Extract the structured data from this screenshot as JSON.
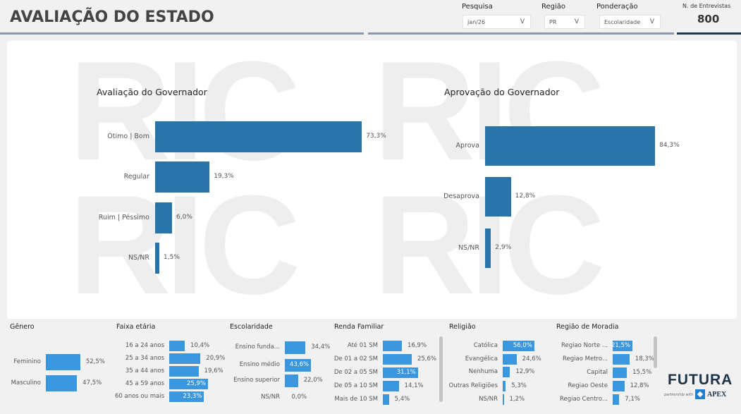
{
  "header": {
    "title": "AVALIAÇÃO DO ESTADO",
    "filters": [
      {
        "label": "Pesquisa",
        "value": "jan/26"
      },
      {
        "label": "Região",
        "value": "PR"
      },
      {
        "label": "Ponderação",
        "value": "Escolaridade"
      }
    ],
    "chevron": "V",
    "interviews_label": "N. de Entrevistas",
    "interviews_value": "800"
  },
  "watermark": "RIC",
  "colors": {
    "main_bar": "#2874a8",
    "small_bar": "#3a96dd"
  },
  "main_charts": [
    {
      "title": "Avaliação do Governador",
      "categories": [
        "Ótimo | Bom",
        "Regular",
        "Ruim | Péssimo",
        "NS/NR"
      ],
      "values": [
        73.3,
        19.3,
        6.0,
        1.5
      ],
      "labels": [
        "73,3%",
        "19,3%",
        "6,0%",
        "1,5%"
      ]
    },
    {
      "title": "Aprovação do Governador",
      "categories": [
        "Aprova",
        "Desaprova",
        "NS/NR"
      ],
      "values": [
        84.3,
        12.8,
        2.9
      ],
      "labels": [
        "84,3%",
        "12,8%",
        "2,9%"
      ]
    }
  ],
  "small_charts": [
    {
      "title": "Gênero",
      "categories": [
        "Feminino",
        "Masculino"
      ],
      "values": [
        52.5,
        47.5
      ],
      "labels": [
        "52,5%",
        "47,5%"
      ]
    },
    {
      "title": "Faixa etária",
      "categories": [
        "16 a 24 anos",
        "25 a 34 anos",
        "35 a 44 anos",
        "45 a 59 anos",
        "60 anos ou mais"
      ],
      "values": [
        10.4,
        20.9,
        19.6,
        25.9,
        23.3
      ],
      "labels": [
        "10,4%",
        "20,9%",
        "19,6%",
        "25,9%",
        "23,3%"
      ]
    },
    {
      "title": "Escolaridade",
      "categories": [
        "Ensino funda...",
        "Ensino médio",
        "Ensino superior",
        "NS/NR"
      ],
      "values": [
        34.4,
        43.6,
        22.0,
        0.0
      ],
      "labels": [
        "34,4%",
        "43,6%",
        "22,0%",
        "0,0%"
      ]
    },
    {
      "title": "Renda Familiar",
      "categories": [
        "Até 01 SM",
        "De 01 a 02 SM",
        "De 02 a 05 SM",
        "De 05 a 10 SM",
        "Mais de 10 SM"
      ],
      "values": [
        16.9,
        25.6,
        31.1,
        14.1,
        5.4
      ],
      "labels": [
        "16,9%",
        "25,6%",
        "31,1%",
        "14,1%",
        "5,4%"
      ]
    },
    {
      "title": "Religião",
      "categories": [
        "Católica",
        "Evangélica",
        "Nenhuma",
        "Outras Religiões",
        "NS/NR"
      ],
      "values": [
        56.0,
        24.6,
        12.9,
        5.3,
        1.2
      ],
      "labels": [
        "56,0%",
        "24,6%",
        "12,9%",
        "5,3%",
        "1,2%"
      ]
    },
    {
      "title": "Região de Moradia",
      "categories": [
        "Regiao Norte ...",
        "Regiao Metro...",
        "Capital",
        "Regiao Oeste",
        "Regiao Centro..."
      ],
      "values": [
        21.5,
        18.3,
        15.5,
        12.8,
        7.1
      ],
      "labels": [
        "21,5%",
        "18,3%",
        "15,5%",
        "12,8%",
        "7,1%"
      ]
    }
  ],
  "logo": {
    "brand": "FUTURA",
    "partner_text": "partnership with",
    "partner": "APEX"
  }
}
